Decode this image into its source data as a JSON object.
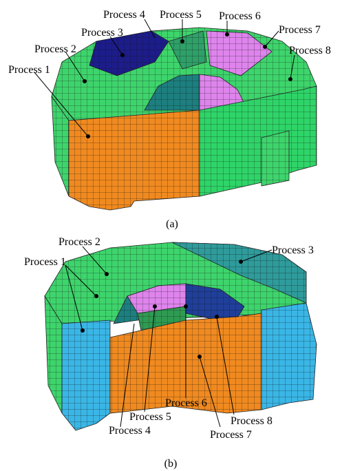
{
  "panel_a": {
    "labels": [
      "Process 1",
      "Process 2",
      "Process 3",
      "Process 4",
      "Process 5",
      "Process 6",
      "Process 7",
      "Process 8"
    ],
    "caption": "(a)"
  },
  "panel_b": {
    "labels": [
      "Process 1",
      "Process 2",
      "Process 3",
      "Process 4",
      "Process 5",
      "Process 6",
      "Process 7",
      "Process 8"
    ],
    "caption": "(b)"
  }
}
